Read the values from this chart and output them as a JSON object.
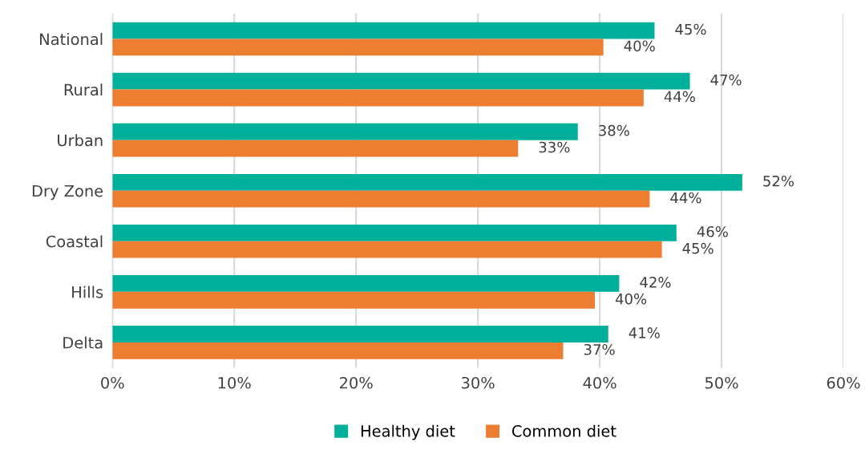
{
  "chart_data": {
    "type": "bar",
    "orientation": "horizontal",
    "categories": [
      "National",
      "Rural",
      "Urban",
      "Dry Zone",
      "Coastal",
      "Hills",
      "Delta"
    ],
    "series": [
      {
        "name": "Healthy diet",
        "color": "#00b09b",
        "values": [
          44.5,
          47.4,
          38.2,
          51.7,
          46.3,
          41.6,
          40.7
        ],
        "value_labels": [
          "45%",
          "47%",
          "38%",
          "52%",
          "46%",
          "42%",
          "41%"
        ]
      },
      {
        "name": "Common diet",
        "color": "#ed7d31",
        "values": [
          40.3,
          43.6,
          33.3,
          44.1,
          45.1,
          39.6,
          37.0
        ],
        "value_labels": [
          "40%",
          "44%",
          "33%",
          "44%",
          "45%",
          "40%",
          "37%"
        ]
      }
    ],
    "xlim": [
      0,
      60
    ],
    "xticks": [
      {
        "value": 0,
        "label": "0%"
      },
      {
        "value": 10,
        "label": "10%"
      },
      {
        "value": 20,
        "label": "20%"
      },
      {
        "value": 30,
        "label": "30%"
      },
      {
        "value": 40,
        "label": "40%"
      },
      {
        "value": 50,
        "label": "50%"
      },
      {
        "value": 60,
        "label": "60%"
      }
    ],
    "grid": "x",
    "legend": "bottom"
  }
}
